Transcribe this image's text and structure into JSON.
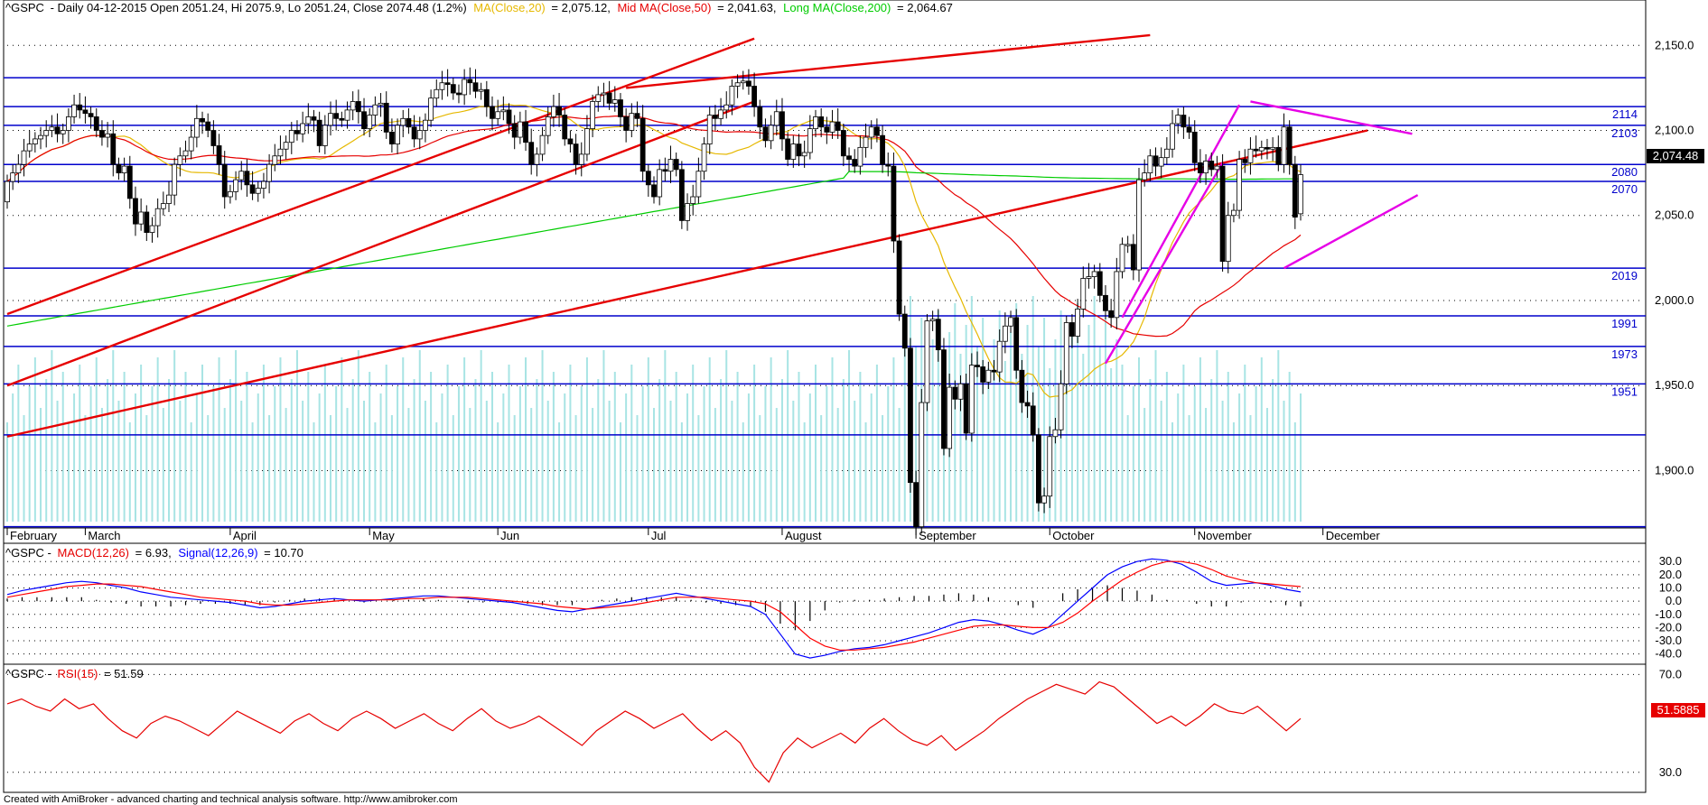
{
  "header": {
    "symbol": "^GSPC",
    "prefix": "- Daily 04-12-2015 Open 2051.24, Hi 2075.9, Lo 2051.24, Close 2074.48 (1.2%)",
    "ma_label": "MA(Close,20)",
    "ma_value": "= 2,075.12,",
    "mid_label": "Mid MA(Close,50)",
    "mid_value": "= 2,041.63,",
    "long_label": "Long MA(Close,200)",
    "long_value": "= 2,064.67"
  },
  "macd_header": {
    "symbol": "^GSPC -",
    "macd_label": "MACD(12,26)",
    "macd_value": "= 6.93,",
    "signal_label": "Signal(12,26,9)",
    "signal_value": "= 10.70"
  },
  "rsi_header": {
    "symbol": "^GSPC -",
    "rsi_label": "RSI(15)",
    "rsi_value": "= 51.59"
  },
  "footer": "Created with AmiBroker - advanced charting and technical analysis software. http://www.amibroker.com",
  "colors": {
    "ma20": "#e6b800",
    "ma50": "#e60000",
    "ma200": "#00cc00",
    "level": "#0000cc",
    "trend": "#e60000",
    "channel": "#e600e6",
    "volume": "#a8e4e4",
    "macd": "#0000ff",
    "signal": "#ff0000"
  },
  "chart_data": [
    {
      "type": "candlestick",
      "title": "^GSPC - Daily 04-12-2015",
      "ylim": [
        1870,
        2165
      ],
      "yticks": [
        "2,150.0",
        "2,100.0",
        "2,050.0",
        "2,000.0",
        "1,950.0",
        "1,900.0"
      ],
      "ytick_values": [
        2150,
        2100,
        2050,
        2000,
        1950,
        1900
      ],
      "months": [
        "February",
        "March",
        "April",
        "May",
        "Jun",
        "Jul",
        "August",
        "September",
        "October",
        "November",
        "December"
      ],
      "last_price_label": "2,074.48",
      "levels": [
        {
          "value": 2131,
          "label": ""
        },
        {
          "value": 2114,
          "label": "2114"
        },
        {
          "value": 2103,
          "label": "2103"
        },
        {
          "value": 2080,
          "label": "2080"
        },
        {
          "value": 2070,
          "label": "2070"
        },
        {
          "value": 2019,
          "label": "2019"
        },
        {
          "value": 1991,
          "label": "1991"
        },
        {
          "value": 1973,
          "label": "1973"
        },
        {
          "value": 1951,
          "label": "1951"
        },
        {
          "value": 1921,
          "label": ""
        },
        {
          "value": 1867,
          "label": ""
        }
      ],
      "bars_close": [
        2070,
        2075,
        2080,
        2088,
        2092,
        2095,
        2097,
        2100,
        2102,
        2098,
        2100,
        2108,
        2115,
        2112,
        2110,
        2108,
        2100,
        2096,
        2098,
        2080,
        2075,
        2079,
        2060,
        2045,
        2052,
        2040,
        2044,
        2054,
        2057,
        2062,
        2080,
        2085,
        2088,
        2096,
        2107,
        2105,
        2100,
        2091,
        2080,
        2061,
        2064,
        2071,
        2076,
        2068,
        2063,
        2066,
        2070,
        2080,
        2085,
        2089,
        2093,
        2100,
        2098,
        2104,
        2108,
        2106,
        2091,
        2103,
        2110,
        2107,
        2106,
        2112,
        2117,
        2111,
        2101,
        2109,
        2115,
        2116,
        2099,
        2092,
        2103,
        2107,
        2102,
        2095,
        2100,
        2106,
        2119,
        2124,
        2128,
        2127,
        2122,
        2121,
        2130,
        2128,
        2123,
        2124,
        2114,
        2107,
        2111,
        2112,
        2104,
        2096,
        2105,
        2093,
        2080,
        2086,
        2097,
        2108,
        2114,
        2109,
        2095,
        2092,
        2080,
        2086,
        2101,
        2117,
        2121,
        2122,
        2116,
        2118,
        2108,
        2100,
        2110,
        2107,
        2076,
        2068,
        2061,
        2077,
        2076,
        2083,
        2077,
        2047,
        2057,
        2061,
        2076,
        2092,
        2109,
        2107,
        2112,
        2115,
        2126,
        2128,
        2129,
        2126,
        2114,
        2102,
        2094,
        2103,
        2111,
        2095,
        2083,
        2092,
        2085,
        2087,
        2101,
        2108,
        2102,
        2099,
        2105,
        2100,
        2085,
        2083,
        2079,
        2090,
        2096,
        2102,
        2097,
        2080,
        2079,
        2035,
        1992,
        1972,
        1893,
        1867,
        1940,
        1988,
        1989,
        1971,
        1913,
        1949,
        1942,
        1951,
        1922,
        1962,
        1961,
        1952,
        1959,
        1958,
        1976,
        1985,
        1990,
        1959,
        1940,
        1938,
        1921,
        1881,
        1885,
        1920,
        1924,
        1951,
        1987,
        1979,
        1995,
        2013,
        2014,
        2017,
        2003,
        1994,
        1990,
        2017,
        2033,
        2033,
        2018,
        2071,
        2075,
        2085,
        2079,
        2084,
        2089,
        2104,
        2109,
        2102,
        2099,
        2081,
        2075,
        2082,
        2077,
        2079,
        2023,
        2050,
        2053,
        2083,
        2081,
        2089,
        2088,
        2090,
        2089,
        2090,
        2080,
        2102,
        2080,
        2049,
        2074
      ],
      "bars_open": [
        2058,
        2070,
        2075,
        2080,
        2088,
        2092,
        2095,
        2097,
        2100,
        2102,
        2098,
        2100,
        2108,
        2115,
        2112,
        2110,
        2108,
        2100,
        2096,
        2098,
        2080,
        2075,
        2079,
        2060,
        2045,
        2052,
        2040,
        2044,
        2054,
        2057,
        2062,
        2080,
        2085,
        2088,
        2096,
        2107,
        2105,
        2100,
        2091,
        2080,
        2061,
        2064,
        2071,
        2076,
        2068,
        2063,
        2066,
        2070,
        2080,
        2085,
        2089,
        2093,
        2100,
        2098,
        2104,
        2108,
        2106,
        2091,
        2103,
        2110,
        2107,
        2106,
        2112,
        2117,
        2111,
        2101,
        2109,
        2115,
        2116,
        2099,
        2092,
        2103,
        2107,
        2102,
        2095,
        2100,
        2106,
        2119,
        2124,
        2128,
        2127,
        2122,
        2121,
        2130,
        2128,
        2123,
        2124,
        2114,
        2107,
        2111,
        2112,
        2104,
        2096,
        2105,
        2093,
        2080,
        2086,
        2097,
        2108,
        2114,
        2109,
        2095,
        2092,
        2080,
        2086,
        2101,
        2117,
        2121,
        2122,
        2116,
        2118,
        2108,
        2100,
        2110,
        2107,
        2076,
        2068,
        2061,
        2077,
        2076,
        2083,
        2077,
        2047,
        2057,
        2061,
        2076,
        2092,
        2109,
        2107,
        2112,
        2115,
        2126,
        2128,
        2129,
        2126,
        2114,
        2102,
        2094,
        2103,
        2111,
        2095,
        2083,
        2092,
        2085,
        2087,
        2101,
        2108,
        2102,
        2099,
        2105,
        2100,
        2085,
        2083,
        2079,
        2090,
        2096,
        2102,
        2097,
        2080,
        2079,
        2035,
        1992,
        1972,
        1893,
        1867,
        1940,
        1988,
        1989,
        1971,
        1913,
        1949,
        1942,
        1951,
        1922,
        1962,
        1961,
        1952,
        1959,
        1958,
        1976,
        1985,
        1990,
        1959,
        1940,
        1938,
        1921,
        1881,
        1885,
        1920,
        1924,
        1951,
        1987,
        1979,
        1995,
        2013,
        2014,
        2017,
        2003,
        1994,
        1990,
        2017,
        2033,
        2033,
        2018,
        2071,
        2075,
        2085,
        2079,
        2084,
        2089,
        2104,
        2109,
        2102,
        2099,
        2081,
        2075,
        2082,
        2077,
        2079,
        2023,
        2050,
        2053,
        2083,
        2081,
        2089,
        2088,
        2090,
        2089,
        2090,
        2080,
        2102,
        2080,
        2051
      ]
    },
    {
      "type": "line",
      "title": "^GSPC - MACD(12,26) = 6.93, Signal(12,26,9) = 10.70",
      "ylim": [
        -45,
        37
      ],
      "yticks": [
        "30.0",
        "20.0",
        "10.0",
        "0.0",
        "-10.0",
        "-20.0",
        "-30.0",
        "-40.0"
      ],
      "ytick_values": [
        30,
        20,
        10,
        0,
        -10,
        -20,
        -30,
        -40
      ],
      "series": [
        {
          "name": "MACD(12,26)",
          "values": [
            5,
            8,
            10,
            12,
            14,
            15,
            14,
            12,
            10,
            7,
            5,
            3,
            2,
            1,
            0,
            -1,
            -3,
            -5,
            -4,
            -2,
            0,
            1,
            2,
            1,
            0,
            1,
            2,
            3,
            4,
            4,
            3,
            2,
            1,
            0,
            -1,
            -3,
            -5,
            -7,
            -8,
            -6,
            -4,
            -2,
            0,
            2,
            4,
            6,
            4,
            2,
            0,
            -2,
            -4,
            -10,
            -25,
            -40,
            -43,
            -41,
            -38,
            -36,
            -35,
            -33,
            -30,
            -27,
            -24,
            -20,
            -16,
            -14,
            -15,
            -18,
            -22,
            -25,
            -20,
            -10,
            0,
            10,
            20,
            26,
            30,
            32,
            31,
            28,
            22,
            15,
            12,
            13,
            14,
            12,
            9,
            7
          ]
        },
        {
          "name": "Signal(12,26,9)",
          "values": [
            3,
            5,
            7,
            9,
            11,
            12,
            13,
            13,
            12,
            11,
            9,
            7,
            5,
            3,
            2,
            1,
            0,
            -2,
            -3,
            -3,
            -2,
            -1,
            0,
            1,
            1,
            1,
            1,
            2,
            2,
            3,
            3,
            3,
            2,
            1,
            0,
            -1,
            -2,
            -4,
            -5,
            -6,
            -5,
            -4,
            -3,
            -1,
            1,
            3,
            3,
            3,
            2,
            1,
            0,
            -2,
            -8,
            -18,
            -28,
            -34,
            -37,
            -37,
            -36,
            -35,
            -33,
            -31,
            -28,
            -25,
            -22,
            -19,
            -18,
            -18,
            -19,
            -20,
            -20,
            -16,
            -9,
            0,
            8,
            16,
            22,
            27,
            30,
            30,
            28,
            24,
            19,
            16,
            14,
            13,
            12,
            11
          ]
        }
      ],
      "histogram": [
        2,
        3,
        3,
        3,
        3,
        3,
        1,
        -1,
        -2,
        -4,
        -4,
        -4,
        -3,
        -2,
        -2,
        -2,
        -3,
        -3,
        -1,
        1,
        2,
        2,
        2,
        0,
        -1,
        0,
        1,
        1,
        2,
        1,
        0,
        -1,
        -1,
        -1,
        -1,
        -2,
        -3,
        -3,
        -3,
        0,
        1,
        2,
        3,
        3,
        3,
        3,
        1,
        -1,
        -2,
        -3,
        -4,
        -8,
        -17,
        -22,
        -15,
        -7,
        -1,
        1,
        1,
        2,
        3,
        4,
        4,
        5,
        6,
        5,
        3,
        0,
        -3,
        -5,
        0,
        6,
        9,
        10,
        12,
        10,
        8,
        5,
        1,
        0,
        -2,
        -4,
        -4,
        -1,
        0,
        -1,
        -3,
        -4
      ]
    },
    {
      "type": "line",
      "title": "^GSPC - RSI(15) = 51.59",
      "ylim": [
        24,
        72
      ],
      "yticks": [
        "70.0",
        "30.0"
      ],
      "ytick_values": [
        70,
        30
      ],
      "last_value_label": "51.5885",
      "series": [
        {
          "name": "RSI(15)",
          "values": [
            58,
            60,
            57,
            55,
            60,
            56,
            58,
            52,
            47,
            44,
            50,
            53,
            51,
            48,
            45,
            50,
            55,
            52,
            49,
            46,
            51,
            54,
            50,
            47,
            52,
            55,
            52,
            48,
            51,
            54,
            50,
            47,
            52,
            56,
            51,
            48,
            50,
            53,
            49,
            45,
            41,
            47,
            51,
            55,
            52,
            48,
            51,
            54,
            48,
            43,
            47,
            42,
            32,
            26,
            38,
            44,
            40,
            43,
            46,
            42,
            48,
            52,
            47,
            43,
            41,
            45,
            39,
            43,
            47,
            52,
            56,
            60,
            63,
            66,
            64,
            62,
            67,
            65,
            60,
            55,
            50,
            53,
            49,
            53,
            58,
            55,
            54,
            57,
            52,
            47,
            52
          ]
        }
      ]
    }
  ]
}
